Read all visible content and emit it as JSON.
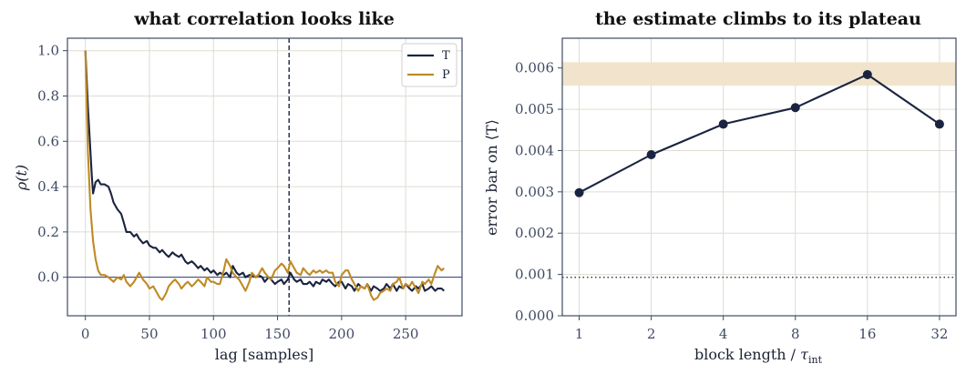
{
  "chart_data": [
    {
      "type": "line",
      "title": "what correlation looks like",
      "xlabel": "lag [samples]",
      "ylabel": "ρ(t)",
      "xlim": [
        -14,
        294
      ],
      "ylim": [
        -0.17,
        1.055
      ],
      "xticks": [
        0,
        50,
        100,
        150,
        200,
        250
      ],
      "yticks": [
        0.0,
        0.2,
        0.4,
        0.6,
        0.8,
        1.0
      ],
      "ytick_labels": [
        "0.0",
        "0.2",
        "0.4",
        "0.6",
        "0.8",
        "1.0"
      ],
      "grid": true,
      "legend_position": "top-right",
      "reference_lines": {
        "horizontal_y": 0.0,
        "vertical_x": 159
      },
      "series": [
        {
          "name": "T",
          "color": "#1a2440",
          "x": [
            0,
            2,
            4,
            5,
            6,
            8,
            10,
            12,
            15,
            18,
            20,
            22,
            25,
            28,
            30,
            32,
            35,
            38,
            40,
            42,
            45,
            48,
            50,
            53,
            55,
            58,
            60,
            63,
            65,
            68,
            70,
            73,
            75,
            78,
            80,
            83,
            85,
            88,
            90,
            93,
            95,
            98,
            100,
            103,
            105,
            108,
            110,
            113,
            115,
            118,
            120,
            123,
            125,
            128,
            130,
            133,
            135,
            138,
            140,
            143,
            145,
            148,
            150,
            153,
            155,
            158,
            160,
            163,
            165,
            168,
            170,
            173,
            175,
            178,
            180,
            183,
            185,
            188,
            190,
            193,
            195,
            198,
            200,
            203,
            205,
            208,
            210,
            213,
            215,
            218,
            220,
            223,
            225,
            228,
            230,
            233,
            235,
            238,
            240,
            243,
            245,
            248,
            250,
            253,
            255,
            258,
            260,
            263,
            265,
            268,
            270,
            273,
            275,
            278,
            280
          ],
          "y": [
            1.0,
            0.75,
            0.55,
            0.45,
            0.37,
            0.42,
            0.43,
            0.41,
            0.41,
            0.4,
            0.37,
            0.33,
            0.3,
            0.28,
            0.24,
            0.2,
            0.2,
            0.18,
            0.19,
            0.17,
            0.15,
            0.16,
            0.14,
            0.13,
            0.13,
            0.11,
            0.12,
            0.1,
            0.09,
            0.11,
            0.1,
            0.09,
            0.1,
            0.07,
            0.06,
            0.07,
            0.06,
            0.04,
            0.05,
            0.03,
            0.04,
            0.02,
            0.03,
            0.01,
            0.02,
            0.01,
            0.02,
            0.0,
            0.05,
            0.02,
            0.01,
            0.02,
            0.0,
            0.01,
            0.01,
            0.0,
            0.01,
            0.0,
            -0.02,
            0.0,
            -0.01,
            -0.03,
            -0.02,
            -0.01,
            -0.03,
            -0.01,
            0.02,
            -0.01,
            -0.02,
            -0.01,
            -0.03,
            -0.03,
            -0.02,
            -0.04,
            -0.02,
            -0.03,
            -0.01,
            -0.02,
            -0.01,
            -0.03,
            -0.04,
            -0.02,
            -0.02,
            -0.05,
            -0.03,
            -0.04,
            -0.06,
            -0.03,
            -0.04,
            -0.05,
            -0.03,
            -0.06,
            -0.04,
            -0.05,
            -0.06,
            -0.05,
            -0.03,
            -0.05,
            -0.03,
            -0.06,
            -0.04,
            -0.05,
            -0.03,
            -0.05,
            -0.06,
            -0.04,
            -0.05,
            -0.03,
            -0.06,
            -0.05,
            -0.04,
            -0.06,
            -0.05,
            -0.05,
            -0.06
          ]
        },
        {
          "name": "P",
          "color": "#bf8a24",
          "x": [
            0,
            2,
            4,
            6,
            8,
            10,
            12,
            15,
            18,
            20,
            22,
            25,
            28,
            30,
            32,
            35,
            38,
            40,
            42,
            45,
            48,
            50,
            53,
            55,
            58,
            60,
            63,
            65,
            68,
            70,
            73,
            75,
            78,
            80,
            83,
            85,
            88,
            90,
            93,
            95,
            98,
            100,
            103,
            105,
            108,
            110,
            113,
            115,
            118,
            120,
            123,
            125,
            128,
            130,
            133,
            135,
            138,
            140,
            143,
            145,
            148,
            150,
            153,
            155,
            158,
            160,
            163,
            165,
            168,
            170,
            173,
            175,
            178,
            180,
            183,
            185,
            188,
            190,
            193,
            195,
            198,
            200,
            203,
            205,
            208,
            210,
            213,
            215,
            218,
            220,
            223,
            225,
            228,
            230,
            233,
            235,
            238,
            240,
            243,
            245,
            248,
            250,
            253,
            255,
            258,
            260,
            263,
            265,
            268,
            270,
            273,
            275,
            278,
            280
          ],
          "y": [
            1.0,
            0.55,
            0.3,
            0.16,
            0.08,
            0.03,
            0.01,
            0.01,
            0.0,
            -0.01,
            -0.02,
            0.0,
            -0.01,
            0.01,
            -0.02,
            -0.04,
            -0.02,
            0.0,
            0.02,
            -0.01,
            -0.03,
            -0.05,
            -0.04,
            -0.06,
            -0.09,
            -0.1,
            -0.07,
            -0.04,
            -0.02,
            -0.01,
            -0.03,
            -0.05,
            -0.03,
            -0.02,
            -0.04,
            -0.03,
            -0.01,
            -0.02,
            -0.04,
            0.0,
            -0.02,
            -0.02,
            -0.03,
            -0.03,
            0.03,
            0.08,
            0.05,
            0.02,
            0.0,
            -0.01,
            -0.04,
            -0.06,
            -0.02,
            0.02,
            0.0,
            0.01,
            0.04,
            0.02,
            0.0,
            -0.01,
            0.03,
            0.04,
            0.06,
            0.05,
            0.02,
            0.07,
            0.04,
            0.02,
            0.01,
            0.04,
            0.02,
            0.01,
            0.03,
            0.02,
            0.03,
            0.02,
            0.03,
            0.02,
            0.02,
            -0.02,
            -0.04,
            0.01,
            0.03,
            0.03,
            -0.01,
            -0.03,
            -0.06,
            -0.04,
            -0.05,
            -0.03,
            -0.08,
            -0.1,
            -0.09,
            -0.07,
            -0.06,
            -0.05,
            -0.06,
            -0.03,
            -0.02,
            0.0,
            -0.05,
            -0.03,
            -0.04,
            -0.02,
            -0.05,
            -0.07,
            -0.02,
            -0.03,
            -0.01,
            -0.03,
            0.02,
            0.05,
            0.03,
            0.04
          ]
        }
      ]
    },
    {
      "type": "line",
      "title": "the estimate climbs to its plateau",
      "xlabel": "block length / τ_int",
      "ylabel": "error bar on ⟨T⟩",
      "x_scale": "log2",
      "categories": [
        "1",
        "2",
        "4",
        "8",
        "16",
        "32"
      ],
      "x": [
        1,
        2,
        4,
        8,
        16,
        32
      ],
      "xlim": [
        0.85,
        37.5
      ],
      "ylim": [
        0.0,
        0.00672
      ],
      "yticks": [
        0.0,
        0.001,
        0.002,
        0.003,
        0.004,
        0.005,
        0.006
      ],
      "ytick_labels": [
        "0.000",
        "0.001",
        "0.002",
        "0.003",
        "0.004",
        "0.005",
        "0.006"
      ],
      "grid": true,
      "plateau_band": {
        "low": 0.00557,
        "high": 0.00614,
        "color": "#f2e4cc"
      },
      "dotted_reference_y": 0.00093,
      "series": [
        {
          "color": "#1a2440",
          "values": [
            0.00298,
            0.0039,
            0.00464,
            0.00504,
            0.00584,
            0.00464
          ]
        }
      ]
    }
  ]
}
